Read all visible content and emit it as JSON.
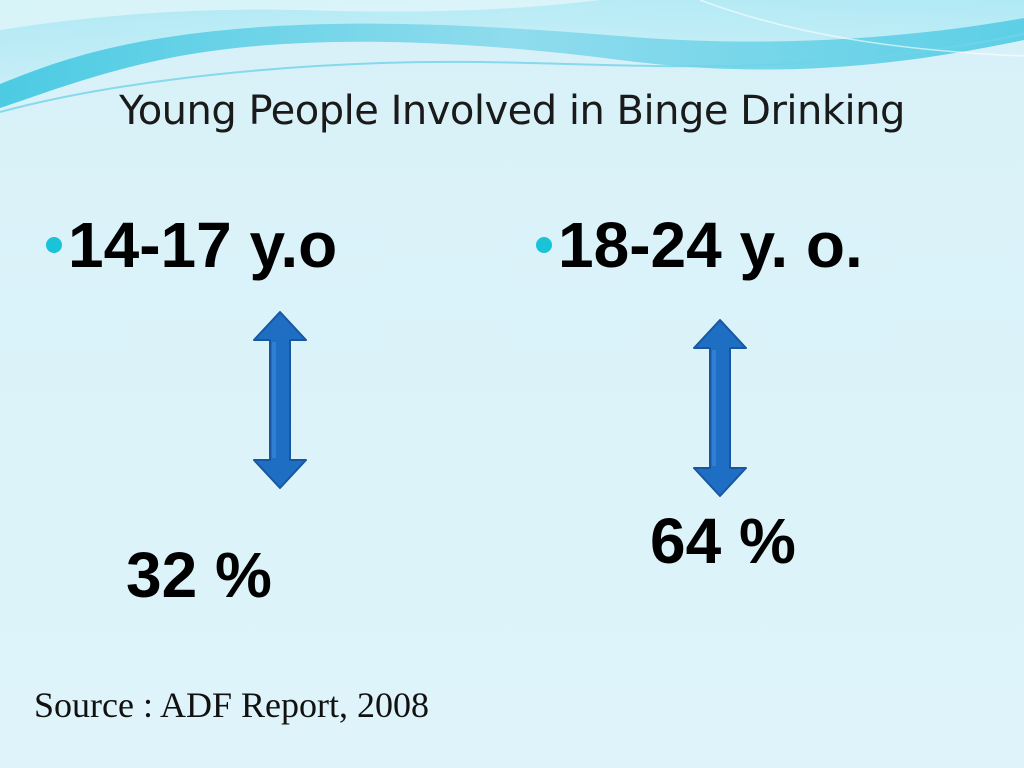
{
  "slide": {
    "title": "Young People Involved in Binge Drinking",
    "groups": [
      {
        "age_label": "14-17 y.o",
        "value_label": "32 %",
        "value": 32
      },
      {
        "age_label": "18-24 y. o.",
        "value_label": "64 %",
        "value": 64
      }
    ],
    "source": "Source : ADF Report, 2008"
  },
  "colors": {
    "bullet": "#19c3d8",
    "arrow_fill": "#1e6fc4",
    "arrow_stroke": "#1856a0",
    "wave_light": "#a8e6f2",
    "wave_dark": "#3fc6e0"
  }
}
